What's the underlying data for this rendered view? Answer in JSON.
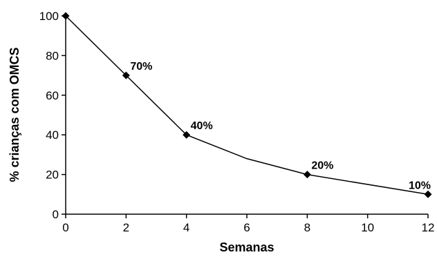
{
  "chart_data": {
    "type": "line",
    "xlabel": "Semanas",
    "ylabel": "% crianças com OMCS",
    "xlim": [
      0,
      12
    ],
    "ylim": [
      0,
      100
    ],
    "x_ticks": [
      0,
      2,
      4,
      6,
      8,
      10,
      12
    ],
    "y_ticks": [
      0,
      20,
      40,
      60,
      80,
      100
    ],
    "grid": false,
    "series": [
      {
        "x": [
          0,
          2,
          4,
          6,
          8,
          12
        ],
        "y": [
          100,
          70,
          40,
          28,
          20,
          10
        ],
        "markers": [
          true,
          true,
          true,
          false,
          true,
          true
        ]
      }
    ],
    "annotations": [
      {
        "x": 2,
        "y": 70,
        "text": "70%"
      },
      {
        "x": 4,
        "y": 40,
        "text": "40%"
      },
      {
        "x": 8,
        "y": 20,
        "text": "20%"
      },
      {
        "x": 12,
        "y": 10,
        "text": "10%"
      }
    ]
  }
}
